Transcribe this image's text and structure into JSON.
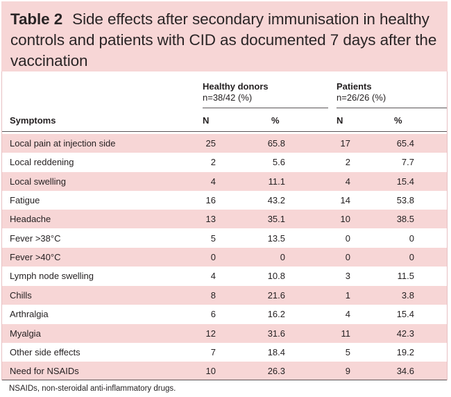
{
  "table": {
    "label": "Table 2",
    "caption": "Side effects after secondary immunisation in healthy controls and patients with CID as documented 7 days after the vaccination",
    "groups": [
      {
        "name": "Healthy donors",
        "subtitle": "n=38/42 (%)"
      },
      {
        "name": "Patients",
        "subtitle": "n=26/26 (%)"
      }
    ],
    "columns": [
      "Symptoms",
      "N",
      "%",
      "N",
      "%"
    ],
    "rows": [
      {
        "symptom": "Local pain at injection side",
        "hd_n": "25",
        "hd_pct": "65.8",
        "pt_n": "17",
        "pt_pct": "65.4"
      },
      {
        "symptom": "Local reddening",
        "hd_n": "2",
        "hd_pct": "5.6",
        "pt_n": "2",
        "pt_pct": "7.7"
      },
      {
        "symptom": "Local swelling",
        "hd_n": "4",
        "hd_pct": "11.1",
        "pt_n": "4",
        "pt_pct": "15.4"
      },
      {
        "symptom": "Fatigue",
        "hd_n": "16",
        "hd_pct": "43.2",
        "pt_n": "14",
        "pt_pct": "53.8"
      },
      {
        "symptom": "Headache",
        "hd_n": "13",
        "hd_pct": "35.1",
        "pt_n": "10",
        "pt_pct": "38.5"
      },
      {
        "symptom": "Fever >38°C",
        "hd_n": "5",
        "hd_pct": "13.5",
        "pt_n": "0",
        "pt_pct": "0"
      },
      {
        "symptom": "Fever >40°C",
        "hd_n": "0",
        "hd_pct": "0",
        "pt_n": "0",
        "pt_pct": "0"
      },
      {
        "symptom": "Lymph node swelling",
        "hd_n": "4",
        "hd_pct": "10.8",
        "pt_n": "3",
        "pt_pct": "11.5"
      },
      {
        "symptom": "Chills",
        "hd_n": "8",
        "hd_pct": "21.6",
        "pt_n": "1",
        "pt_pct": "3.8"
      },
      {
        "symptom": "Arthralgia",
        "hd_n": "6",
        "hd_pct": "16.2",
        "pt_n": "4",
        "pt_pct": "15.4"
      },
      {
        "symptom": "Myalgia",
        "hd_n": "12",
        "hd_pct": "31.6",
        "pt_n": "11",
        "pt_pct": "42.3"
      },
      {
        "symptom": "Other side effects",
        "hd_n": "7",
        "hd_pct": "18.4",
        "pt_n": "5",
        "pt_pct": "19.2"
      },
      {
        "symptom": "Need for NSAIDs",
        "hd_n": "10",
        "hd_pct": "26.3",
        "pt_n": "9",
        "pt_pct": "34.6"
      }
    ],
    "footnote": "NSAIDs, non-steroidal anti-inflammatory drugs."
  },
  "colors": {
    "accent_band": "#f7d6d6",
    "border": "#e7bfc2",
    "text": "#231f20",
    "rule": "#5a5557"
  }
}
